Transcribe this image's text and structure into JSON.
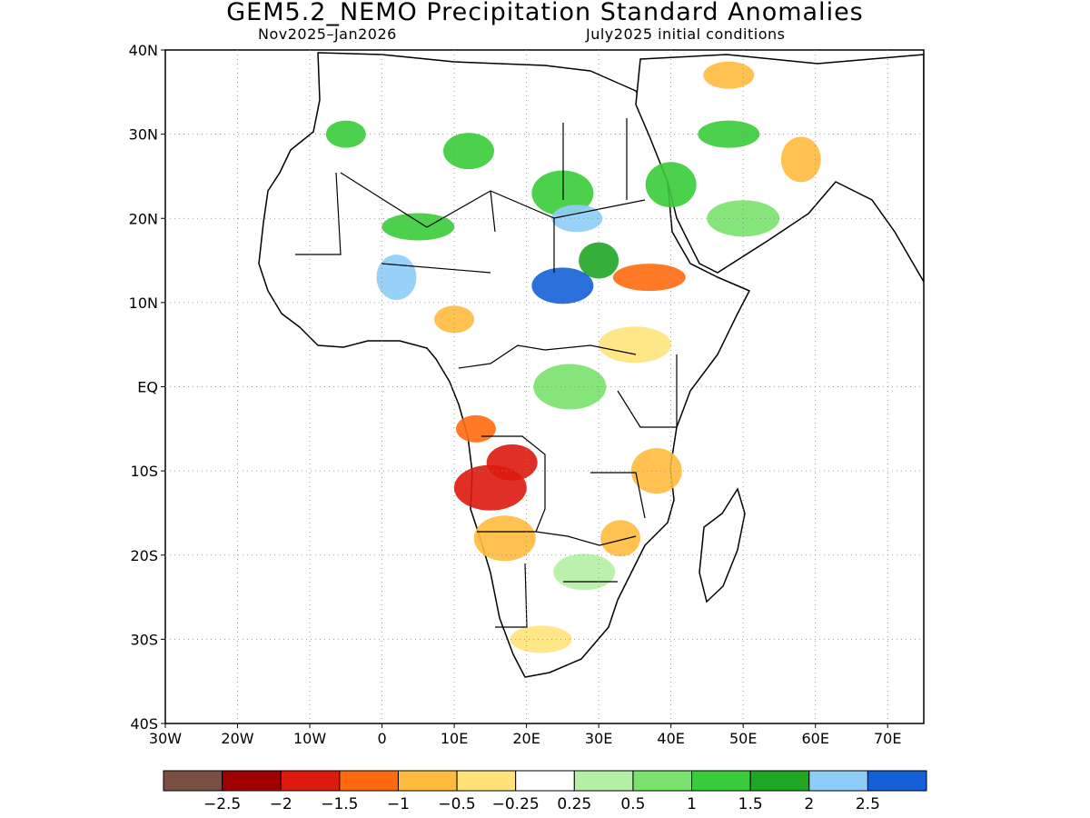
{
  "title": "GEM5.2_NEMO Precipitation Standard Anomalies",
  "subtitle_left": "Nov2025–Jan2026",
  "subtitle_right": "July2025 initial conditions",
  "map": {
    "region": "Africa",
    "lon_range": [
      -30,
      75
    ],
    "lat_range": [
      -40,
      40
    ],
    "grid": "dotted",
    "lat_labels": [
      "40N",
      "30N",
      "20N",
      "10N",
      "EQ",
      "10S",
      "20S",
      "30S",
      "40S"
    ],
    "lon_labels": [
      "30W",
      "20W",
      "10W",
      "0",
      "10E",
      "20E",
      "30E",
      "40E",
      "50E",
      "60E",
      "70E"
    ]
  },
  "colorbar": {
    "colors": [
      "#7a4f43",
      "#a00000",
      "#dd1a0e",
      "#ff6a10",
      "#ffbb3d",
      "#ffe37a",
      "#ffffff",
      "#b4f0a4",
      "#78e26c",
      "#38cc3a",
      "#1fa623",
      "#8ecdf7",
      "#1460d6"
    ],
    "labels": [
      "−2.5",
      "−2",
      "−1.5",
      "−1",
      "−0.5",
      "−0.25",
      "0.25",
      "0.5",
      "1",
      "1.5",
      "2",
      "2.5"
    ]
  },
  "anomaly_areas": [
    {
      "lon": -5,
      "lat": 30,
      "category": 9
    },
    {
      "lon": 12,
      "lat": 28,
      "category": 9
    },
    {
      "lon": 25,
      "lat": 23,
      "category": 9
    },
    {
      "lon": 5,
      "lat": 19,
      "category": 9
    },
    {
      "lon": 30,
      "lat": 15,
      "category": 10
    },
    {
      "lon": 40,
      "lat": 24,
      "category": 9
    },
    {
      "lon": 48,
      "lat": 30,
      "category": 9
    },
    {
      "lon": 50,
      "lat": 20,
      "category": 8
    },
    {
      "lon": 2,
      "lat": 13,
      "category": 11
    },
    {
      "lon": 27,
      "lat": 20,
      "category": 11
    },
    {
      "lon": 25,
      "lat": 12,
      "category": 12
    },
    {
      "lon": 15,
      "lat": -12,
      "category": 2
    },
    {
      "lon": 13,
      "lat": -5,
      "category": 3
    },
    {
      "lon": 18,
      "lat": -9,
      "category": 2
    },
    {
      "lon": 17,
      "lat": -18,
      "category": 4
    },
    {
      "lon": 37,
      "lat": 13,
      "category": 3
    },
    {
      "lon": 33,
      "lat": -18,
      "category": 4
    },
    {
      "lon": 38,
      "lat": -10,
      "category": 4
    },
    {
      "lon": 22,
      "lat": -30,
      "category": 5
    },
    {
      "lon": 35,
      "lat": 5,
      "category": 5
    },
    {
      "lon": 58,
      "lat": 27,
      "category": 4
    },
    {
      "lon": 48,
      "lat": 37,
      "category": 4
    },
    {
      "lon": 28,
      "lat": -22,
      "category": 7
    },
    {
      "lon": 26,
      "lat": 0,
      "category": 8
    },
    {
      "lon": 10,
      "lat": 8,
      "category": 4
    }
  ]
}
